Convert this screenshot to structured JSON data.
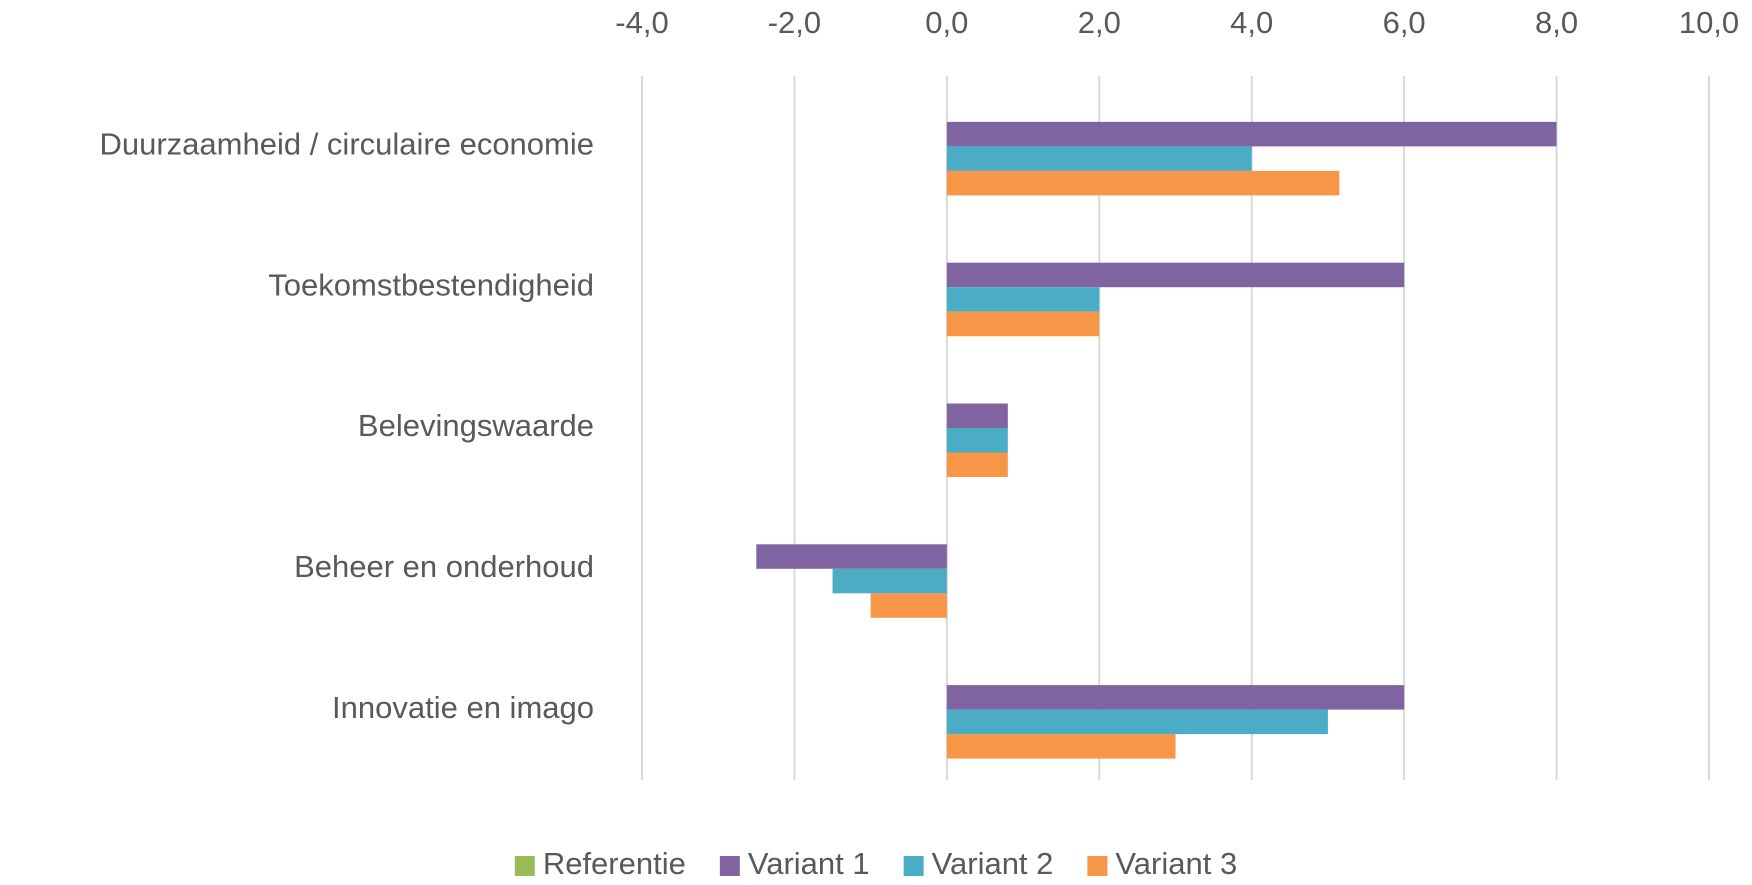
{
  "chart_data": {
    "type": "bar",
    "orientation": "horizontal",
    "categories": [
      "Duurzaamheid / circulaire economie",
      "Toekomstbestendigheid",
      "Belevingswaarde",
      "Beheer en onderhoud",
      "Innovatie en imago"
    ],
    "series": [
      {
        "name": "Referentie",
        "color": "#9bbb59",
        "values": [
          0,
          0,
          0,
          0,
          0
        ]
      },
      {
        "name": "Variant 1",
        "color": "#8064a2",
        "values": [
          8.0,
          6.0,
          0.8,
          -2.5,
          6.0
        ]
      },
      {
        "name": "Variant 2",
        "color": "#4bacc6",
        "values": [
          4.0,
          2.0,
          0.8,
          -1.5,
          5.0
        ]
      },
      {
        "name": "Variant 3",
        "color": "#f79646",
        "values": [
          5.15,
          2.0,
          0.8,
          -1.0,
          3.0
        ]
      }
    ],
    "xlim": [
      -4,
      10
    ],
    "xticks": [
      {
        "value": -4,
        "label": "-4,0"
      },
      {
        "value": -2,
        "label": "-2,0"
      },
      {
        "value": 0,
        "label": "0,0"
      },
      {
        "value": 2,
        "label": "2,0"
      },
      {
        "value": 4,
        "label": "4,0"
      },
      {
        "value": 6,
        "label": "6,0"
      },
      {
        "value": 8,
        "label": "8,0"
      },
      {
        "value": 10,
        "label": "10,0"
      }
    ],
    "grid": true,
    "legend": "bottom"
  }
}
